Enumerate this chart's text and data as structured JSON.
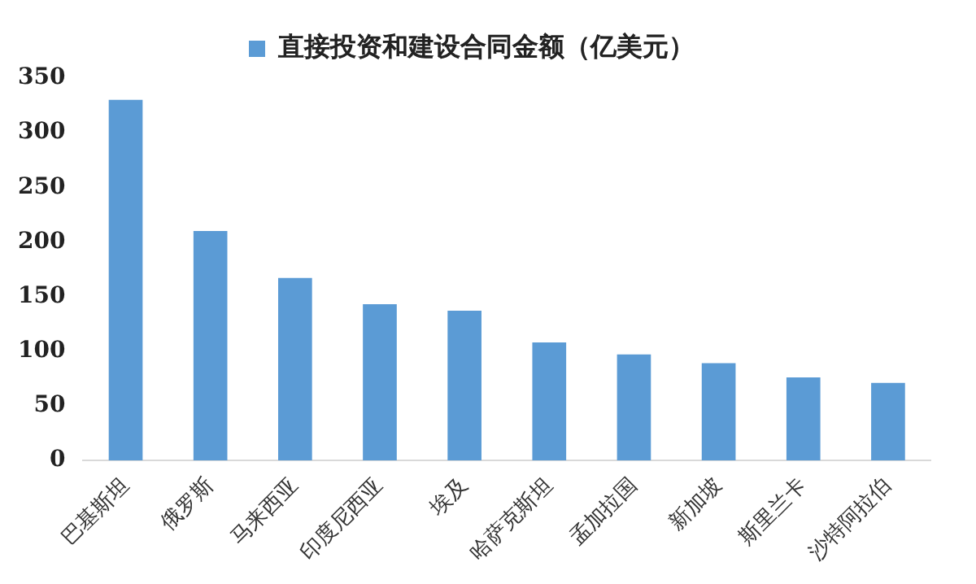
{
  "chart_data": {
    "type": "bar",
    "categories": [
      "巴基斯坦",
      "俄罗斯",
      "马来西亚",
      "印度尼西亚",
      "埃及",
      "哈萨克斯坦",
      "孟加拉国",
      "新加坡",
      "斯里兰卡",
      "沙特阿拉伯"
    ],
    "series": [
      {
        "name": "直接投资和建设合同金额（亿美元）",
        "color": "#5b9bd5",
        "values": [
          330,
          210,
          167,
          143,
          137,
          108,
          97,
          89,
          76,
          71
        ]
      }
    ],
    "ylim": [
      0,
      350
    ],
    "yticks": [
      0,
      50,
      100,
      150,
      200,
      250,
      300,
      350
    ],
    "grid": false,
    "legend": "top"
  }
}
